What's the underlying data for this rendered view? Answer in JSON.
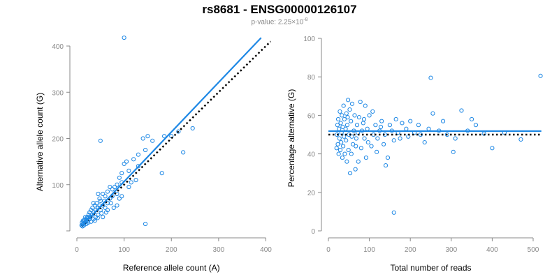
{
  "title": "rs8681 - ENSG00000126107",
  "subtitle": {
    "prefix": "p-value: 2.25×10",
    "exponent": "-8"
  },
  "colors": {
    "points": "#1e88e5",
    "fit_line": "#1e88e5",
    "reference_line": "#000000",
    "axis": "#888888"
  },
  "chart_data": [
    {
      "type": "scatter",
      "xlabel": "Reference allele count (A)",
      "ylabel": "Alternative allele count (G)",
      "xlim": [
        0,
        420
      ],
      "ylim": [
        0,
        420
      ],
      "xticks": [
        0,
        100,
        200,
        300,
        400
      ],
      "yticks": [
        100,
        200,
        300,
        400
      ],
      "fit_line": {
        "x": [
          10,
          390
        ],
        "y": [
          10,
          418
        ]
      },
      "reference_line": {
        "x": [
          10,
          410
        ],
        "y": [
          10,
          410
        ],
        "style": "dotted"
      },
      "points": [
        [
          100,
          418
        ],
        [
          145,
          15
        ],
        [
          50,
          195
        ],
        [
          180,
          125
        ],
        [
          245,
          222
        ],
        [
          225,
          170
        ],
        [
          200,
          205
        ],
        [
          215,
          215
        ],
        [
          185,
          205
        ],
        [
          160,
          195
        ],
        [
          150,
          205
        ],
        [
          140,
          200
        ],
        [
          145,
          175
        ],
        [
          130,
          165
        ],
        [
          120,
          155
        ],
        [
          125,
          110
        ],
        [
          105,
          150
        ],
        [
          110,
          130
        ],
        [
          100,
          145
        ],
        [
          95,
          125
        ],
        [
          95,
          105
        ],
        [
          90,
          115
        ],
        [
          85,
          100
        ],
        [
          80,
          95
        ],
        [
          85,
          80
        ],
        [
          75,
          90
        ],
        [
          70,
          95
        ],
        [
          75,
          75
        ],
        [
          70,
          70
        ],
        [
          65,
          85
        ],
        [
          65,
          60
        ],
        [
          60,
          75
        ],
        [
          60,
          50
        ],
        [
          55,
          80
        ],
        [
          55,
          55
        ],
        [
          50,
          65
        ],
        [
          50,
          45
        ],
        [
          48,
          70
        ],
        [
          45,
          50
        ],
        [
          45,
          35
        ],
        [
          42,
          60
        ],
        [
          40,
          45
        ],
        [
          40,
          30
        ],
        [
          38,
          55
        ],
        [
          36,
          40
        ],
        [
          35,
          25
        ],
        [
          33,
          50
        ],
        [
          32,
          35
        ],
        [
          30,
          45
        ],
        [
          30,
          20
        ],
        [
          28,
          30
        ],
        [
          27,
          40
        ],
        [
          26,
          25
        ],
        [
          25,
          35
        ],
        [
          24,
          18
        ],
        [
          23,
          30
        ],
        [
          22,
          22
        ],
        [
          21,
          28
        ],
        [
          20,
          15
        ],
        [
          20,
          25
        ],
        [
          19,
          20
        ],
        [
          18,
          30
        ],
        [
          17,
          18
        ],
        [
          16,
          24
        ],
        [
          15,
          12
        ],
        [
          15,
          20
        ],
        [
          14,
          16
        ],
        [
          13,
          22
        ],
        [
          12,
          14
        ],
        [
          12,
          10
        ],
        [
          11,
          18
        ],
        [
          10,
          12
        ],
        [
          35,
          60
        ],
        [
          45,
          80
        ],
        [
          55,
          30
        ],
        [
          65,
          45
        ],
        [
          85,
          55
        ],
        [
          95,
          75
        ],
        [
          110,
          95
        ],
        [
          78,
          50
        ],
        [
          62,
          40
        ],
        [
          52,
          38
        ],
        [
          44,
          28
        ],
        [
          38,
          22
        ],
        [
          90,
          70
        ],
        [
          115,
          105
        ],
        [
          130,
          140
        ],
        [
          72,
          60
        ],
        [
          58,
          65
        ],
        [
          48,
          55
        ]
      ]
    },
    {
      "type": "scatter",
      "xlabel": "Total number of reads",
      "ylabel": "Percentage alternative (G)",
      "xlim": [
        0,
        520
      ],
      "ylim": [
        0,
        100
      ],
      "xticks": [
        0,
        100,
        200,
        300,
        400,
        500
      ],
      "yticks": [
        0,
        20,
        40,
        60,
        80,
        100
      ],
      "fit_line": {
        "x": [
          0,
          520
        ],
        "y": [
          51.8,
          51.8
        ]
      },
      "reference_line": {
        "x": [
          0,
          520
        ],
        "y": [
          50,
          50
        ],
        "style": "dotted"
      },
      "points": [
        [
          518,
          80.5
        ],
        [
          250,
          79.5
        ],
        [
          160,
          9.5
        ],
        [
          325,
          62.5
        ],
        [
          305,
          41
        ],
        [
          400,
          43
        ],
        [
          470,
          47.5
        ],
        [
          430,
          51
        ],
        [
          380,
          50.5
        ],
        [
          360,
          55
        ],
        [
          350,
          58
        ],
        [
          340,
          52
        ],
        [
          310,
          48
        ],
        [
          290,
          50
        ],
        [
          280,
          57
        ],
        [
          270,
          52
        ],
        [
          255,
          61
        ],
        [
          245,
          53
        ],
        [
          235,
          46
        ],
        [
          225,
          50
        ],
        [
          220,
          55
        ],
        [
          210,
          51
        ],
        [
          200,
          57
        ],
        [
          195,
          49
        ],
        [
          190,
          53
        ],
        [
          180,
          56
        ],
        [
          175,
          48
        ],
        [
          170,
          51
        ],
        [
          165,
          58
        ],
        [
          160,
          47
        ],
        [
          155,
          52
        ],
        [
          150,
          55
        ],
        [
          145,
          38
        ],
        [
          140,
          34
        ],
        [
          138,
          50
        ],
        [
          135,
          45
        ],
        [
          130,
          57
        ],
        [
          125,
          52
        ],
        [
          120,
          48
        ],
        [
          115,
          55
        ],
        [
          110,
          50
        ],
        [
          105,
          44
        ],
        [
          100,
          60
        ],
        [
          95,
          53
        ],
        [
          92,
          38
        ],
        [
          90,
          65
        ],
        [
          88,
          48
        ],
        [
          85,
          56
        ],
        [
          82,
          52
        ],
        [
          80,
          43
        ],
        [
          78,
          67
        ],
        [
          75,
          59
        ],
        [
          73,
          36
        ],
        [
          70,
          55
        ],
        [
          68,
          48
        ],
        [
          66,
          32
        ],
        [
          64,
          60
        ],
        [
          62,
          52
        ],
        [
          60,
          45
        ],
        [
          58,
          66
        ],
        [
          56,
          40
        ],
        [
          55,
          57
        ],
        [
          53,
          30
        ],
        [
          52,
          63
        ],
        [
          50,
          50
        ],
        [
          49,
          42
        ],
        [
          48,
          68
        ],
        [
          46,
          55
        ],
        [
          45,
          36
        ],
        [
          44,
          61
        ],
        [
          43,
          47
        ],
        [
          42,
          53
        ],
        [
          40,
          40
        ],
        [
          39,
          58
        ],
        [
          38,
          49
        ],
        [
          37,
          65
        ],
        [
          36,
          44
        ],
        [
          35,
          54
        ],
        [
          34,
          38
        ],
        [
          33,
          60
        ],
        [
          32,
          51
        ],
        [
          31,
          46
        ],
        [
          30,
          56
        ],
        [
          29,
          42
        ],
        [
          28,
          62
        ],
        [
          27,
          48
        ],
        [
          26,
          53
        ],
        [
          25,
          40
        ],
        [
          24,
          58
        ],
        [
          23,
          45
        ],
        [
          22,
          55
        ],
        [
          21,
          50
        ],
        [
          20,
          43
        ],
        [
          108,
          62
        ],
        [
          118,
          41
        ],
        [
          128,
          54
        ],
        [
          72,
          51
        ],
        [
          57,
          49
        ],
        [
          47,
          59
        ],
        [
          67,
          44
        ],
        [
          87,
          58
        ],
        [
          97,
          46
        ]
      ]
    }
  ]
}
